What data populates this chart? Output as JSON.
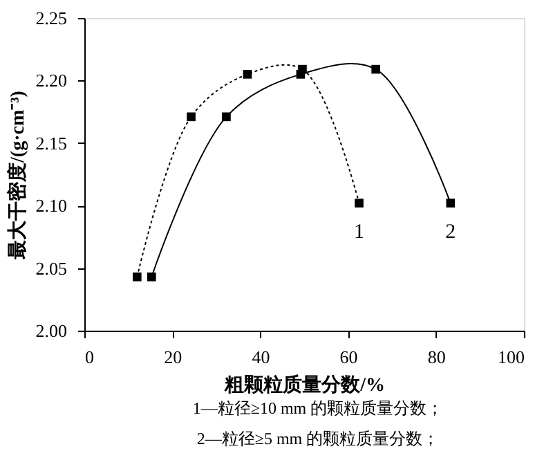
{
  "chart_data": {
    "type": "line",
    "xlabel": "粗颗粒质量分数/%",
    "ylabel": "最大干密度/(g·cm⁻³)",
    "xlim": [
      0,
      100
    ],
    "xticks": [
      0,
      20,
      40,
      60,
      80,
      100
    ],
    "ylim": [
      2.0,
      2.25
    ],
    "yticks": [
      {
        "value": 2.0,
        "label": "2.00"
      },
      2.05,
      {
        "value": 2.1,
        "label": "2.10"
      },
      2.15,
      {
        "value": 2.2,
        "label": "2.20"
      },
      2.25
    ],
    "marker": "square",
    "grid": false,
    "series": [
      {
        "name": "1",
        "color": "#000000",
        "line_style": "dotted",
        "x": [
          12,
          24.3,
          37.1,
          49.6,
          62.5
        ],
        "values": [
          2.043,
          2.171,
          2.205,
          2.209,
          2.102
        ]
      },
      {
        "name": "2",
        "color": "#000000",
        "line_style": "solid",
        "x": [
          15.3,
          32.3,
          49.2,
          66.3,
          83.3
        ],
        "values": [
          2.043,
          2.171,
          2.205,
          2.209,
          2.102
        ]
      }
    ],
    "annotations": [
      "1—粒径≥10 mm 的颗粒质量分数；",
      "2—粒径≥5 mm 的颗粒质量分数；"
    ]
  }
}
